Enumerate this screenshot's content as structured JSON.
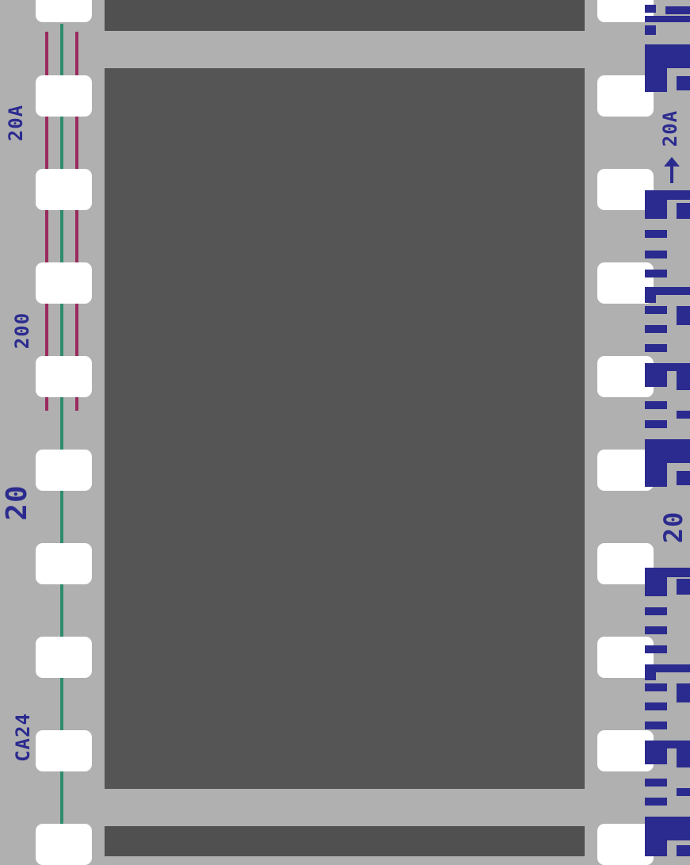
{
  "film_edge": {
    "left_markings": [
      "20A",
      "200",
      "20",
      "CA24"
    ],
    "right_markings": [
      "20A",
      "20"
    ],
    "frames": [
      "previous-frame",
      "current-frame",
      "next-frame"
    ]
  },
  "colors": {
    "film_base": "#b0b0b0",
    "frame": "#555555",
    "sprocket_hole": "#ffffff",
    "edge_print": "#2b2b8f",
    "stripe_green": "#2e8b6e",
    "stripe_magenta": "#9b2b5f"
  },
  "icons": {
    "direction_arrow": "arrow-up-icon"
  }
}
